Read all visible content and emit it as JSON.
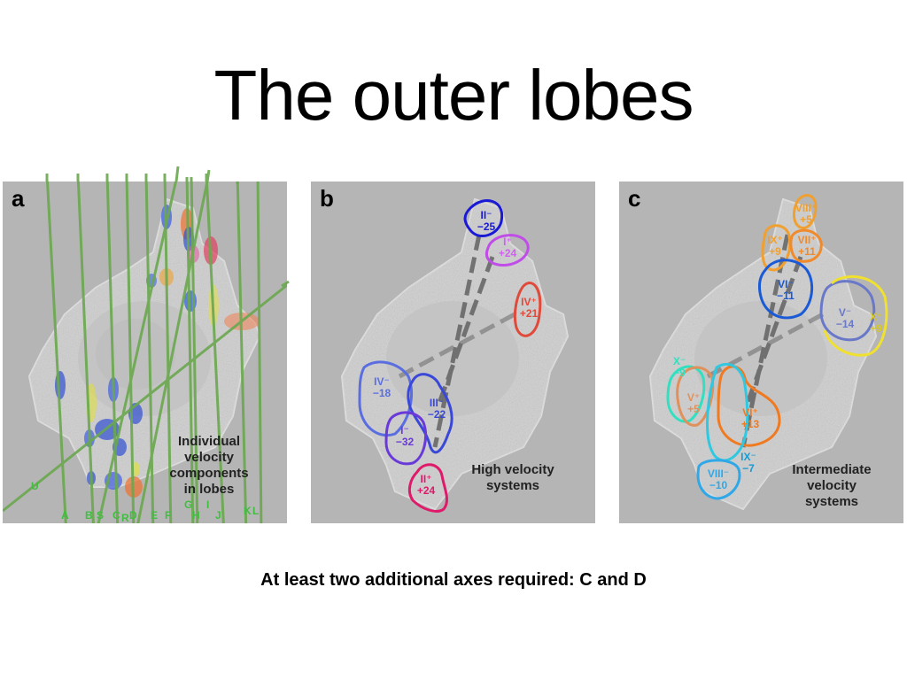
{
  "slide": {
    "title": "The outer lobes",
    "footer": "At least two additional axes required: C and D"
  },
  "panels": {
    "a": {
      "letter": "a",
      "caption": [
        "Individual",
        "velocity",
        "components",
        "in lobes"
      ],
      "axis_labels": [
        "U",
        "A",
        "B",
        "S",
        "C",
        "R",
        "D",
        "E",
        "F",
        "G",
        "H",
        "I",
        "J",
        "K",
        "L"
      ]
    },
    "b": {
      "letter": "b",
      "caption": [
        "High velocity",
        "systems"
      ],
      "lobes": [
        {
          "label": "II⁻",
          "value": "−25",
          "color": "#1a1ad6"
        },
        {
          "label": "I⁺",
          "value": "+24",
          "color": "#c04de8"
        },
        {
          "label": "IV⁺",
          "value": "+21",
          "color": "#e04a3a"
        },
        {
          "label": "IV⁻",
          "value": "−18",
          "color": "#5a6ee0"
        },
        {
          "label": "III⁻",
          "value": "−22",
          "color": "#3a48d8"
        },
        {
          "label": "I⁻",
          "value": "−32",
          "color": "#6a3ad8"
        },
        {
          "label": "II⁺",
          "value": "+24",
          "color": "#e01a6a"
        }
      ]
    },
    "c": {
      "letter": "c",
      "caption": [
        "Intermediate",
        "velocity",
        "systems"
      ],
      "lobes": [
        {
          "label": "VIII⁺",
          "value": "+5",
          "color": "#f0a030"
        },
        {
          "label": "IX⁺",
          "value": "+9",
          "color": "#f0a030"
        },
        {
          "label": "VII⁺",
          "value": "+11",
          "color": "#f08a2a"
        },
        {
          "label": "VI⁻",
          "value": "−11",
          "color": "#1a5ad6"
        },
        {
          "label": "V⁻",
          "value": "−14",
          "color": "#6a78c8"
        },
        {
          "label": "X⁺",
          "value": "+9",
          "color": "#f0e030"
        },
        {
          "label": "X⁻",
          "value": "−9",
          "color": "#30e0c0"
        },
        {
          "label": "V⁺",
          "value": "+5",
          "color": "#e0905a"
        },
        {
          "label": "VI⁺",
          "value": "+13",
          "color": "#f07a20"
        },
        {
          "label": "IX⁻",
          "value": "−7",
          "color": "#30c8e0"
        },
        {
          "label": "VIII⁻",
          "value": "−10",
          "color": "#30a8e8"
        }
      ]
    }
  }
}
